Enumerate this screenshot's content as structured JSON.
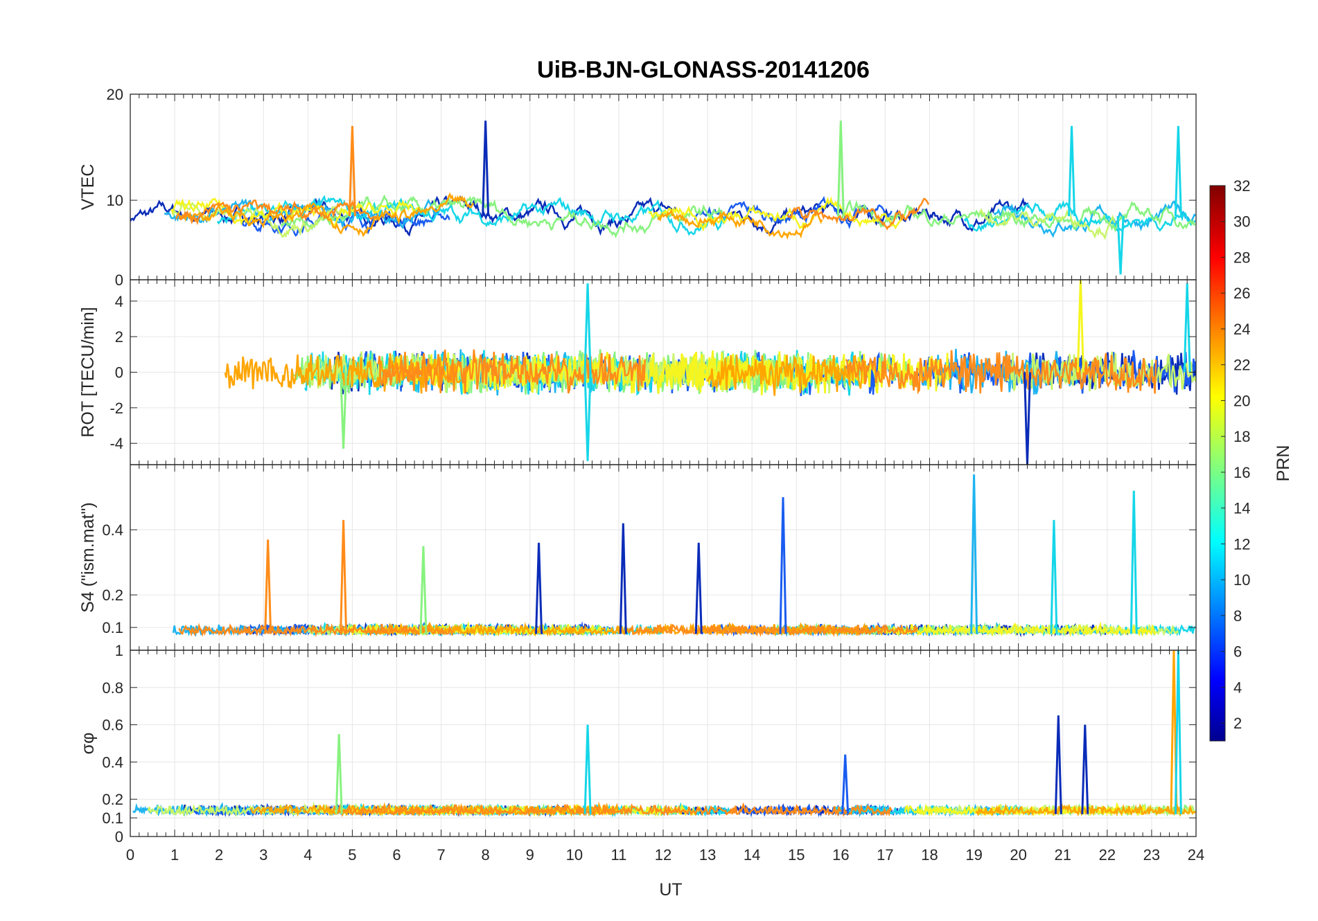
{
  "chart_data": {
    "type": "line",
    "title": "UiB-BJN-GLONASS-20141206",
    "xlabel": "UT",
    "xlim": [
      0,
      24
    ],
    "xticks": [
      0,
      1,
      2,
      3,
      4,
      5,
      6,
      7,
      8,
      9,
      10,
      11,
      12,
      13,
      14,
      15,
      16,
      17,
      18,
      19,
      20,
      21,
      22,
      23,
      24
    ],
    "grid": true,
    "panels": [
      {
        "id": "vtec",
        "ylabel": "VTEC",
        "ylim": [
          2.5,
          20
        ],
        "yticks": [
          10,
          20
        ],
        "tick_labels": [
          "10",
          "20"
        ],
        "baseline": 8.5,
        "noise": 1.3,
        "events": [
          {
            "t": 5.0,
            "value": 17.0,
            "color": "#FF8C1A"
          },
          {
            "t": 8.0,
            "value": 17.5,
            "color": "#0A2CB8"
          },
          {
            "t": 16.0,
            "value": 17.5,
            "color": "#87F27F"
          },
          {
            "t": 21.2,
            "value": 17.0,
            "color": "#15D6E8"
          },
          {
            "t": 22.3,
            "value": 3.0,
            "color": "#15D6E8"
          },
          {
            "t": 23.6,
            "value": 17.0,
            "color": "#15D6E8"
          }
        ]
      },
      {
        "id": "rot",
        "ylabel": "ROT [TECU/min]",
        "ylim": [
          -5.2,
          5.2
        ],
        "yticks": [
          -4,
          -2,
          0,
          2,
          4
        ],
        "tick_labels": [
          "-4",
          "-2",
          "0",
          "2",
          "4"
        ],
        "top_label": "0",
        "baseline": 0,
        "noise": 0.9,
        "events": [
          {
            "t": 10.3,
            "value": 5.0,
            "color": "#15D6E8"
          },
          {
            "t": 10.3,
            "value": -5.0,
            "color": "#15D6E8"
          },
          {
            "t": 20.2,
            "value": -5.2,
            "color": "#0A2CB8"
          },
          {
            "t": 21.4,
            "value": 5.2,
            "color": "#F5F51F"
          },
          {
            "t": 23.8,
            "value": 5.0,
            "color": "#15D6E8"
          },
          {
            "t": 4.8,
            "value": -4.3,
            "color": "#87F27F"
          }
        ]
      },
      {
        "id": "s4",
        "ylabel": "S4 (\"ism.mat\")",
        "ylim": [
          0.03,
          0.6
        ],
        "yticks": [
          0.1,
          0.2,
          0.4
        ],
        "tick_labels": [
          "0.1",
          "0.2",
          "0.4"
        ],
        "baseline": 0.08,
        "noise": 0.03,
        "events": [
          {
            "t": 3.1,
            "value": 0.37,
            "color": "#FF8C1A"
          },
          {
            "t": 4.8,
            "value": 0.43,
            "color": "#FF8C1A"
          },
          {
            "t": 6.6,
            "value": 0.35,
            "color": "#87F27F"
          },
          {
            "t": 9.2,
            "value": 0.36,
            "color": "#0A2CB8"
          },
          {
            "t": 11.1,
            "value": 0.42,
            "color": "#0A2CB8"
          },
          {
            "t": 12.8,
            "value": 0.36,
            "color": "#0A2CB8"
          },
          {
            "t": 14.7,
            "value": 0.5,
            "color": "#1A5CF0"
          },
          {
            "t": 19.0,
            "value": 0.57,
            "color": "#1EB4F0"
          },
          {
            "t": 20.8,
            "value": 0.43,
            "color": "#15D6E8"
          },
          {
            "t": 22.6,
            "value": 0.52,
            "color": "#15D6E8"
          }
        ]
      },
      {
        "id": "sigma",
        "ylabel": "σφ",
        "ylim": [
          0,
          1
        ],
        "yticks": [
          0,
          0.1,
          0.2,
          0.4,
          0.6,
          0.8,
          1
        ],
        "tick_labels": [
          "0",
          "0.1",
          "0.2",
          "0.4",
          "0.6",
          "0.8",
          "1"
        ],
        "baseline": 0.12,
        "noise": 0.05,
        "events": [
          {
            "t": 4.7,
            "value": 0.55,
            "color": "#87F27F"
          },
          {
            "t": 10.3,
            "value": 0.6,
            "color": "#15D6E8"
          },
          {
            "t": 16.1,
            "value": 0.44,
            "color": "#1A5CF0"
          },
          {
            "t": 20.9,
            "value": 0.65,
            "color": "#0A2CB8"
          },
          {
            "t": 21.5,
            "value": 0.6,
            "color": "#0A2CB8"
          },
          {
            "t": 23.5,
            "value": 1.0,
            "color": "#FFA500"
          },
          {
            "t": 23.6,
            "value": 1.0,
            "color": "#15D6E8"
          }
        ]
      }
    ],
    "series_palette": [
      "#0A2CB8",
      "#1A5CF0",
      "#1EB4F0",
      "#15D6E8",
      "#87F27F",
      "#C8F56A",
      "#F5F51F",
      "#FFA500",
      "#FF8C1A"
    ],
    "colorbar": {
      "label": "PRN",
      "range": [
        1,
        32
      ],
      "ticks": [
        "2",
        "4",
        "6",
        "8",
        "10",
        "12",
        "14",
        "16",
        "18",
        "20",
        "22",
        "24",
        "26",
        "28",
        "30",
        "32"
      ]
    }
  }
}
